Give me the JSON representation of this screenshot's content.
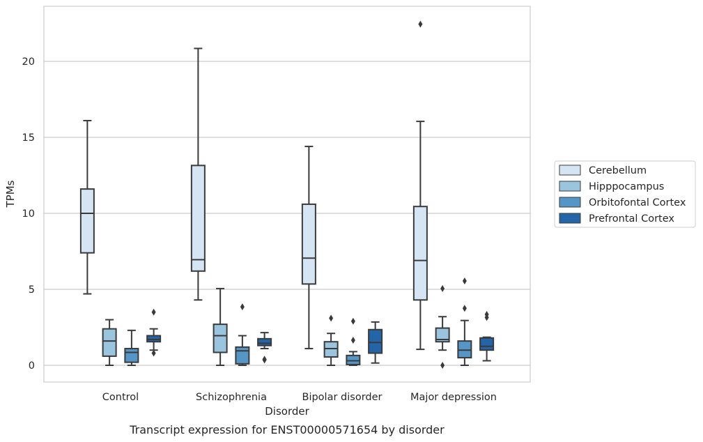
{
  "chart_data": {
    "type": "box",
    "title": "",
    "caption": "Transcript expression for ENST00000571654 by disorder",
    "xlabel": "Disorder",
    "ylabel": "TPMs",
    "ylim": [
      -1.1,
      23.3
    ],
    "yticks": [
      0,
      5,
      10,
      15,
      20
    ],
    "grid": "horizontal",
    "legend_placement": "right",
    "categories": [
      "Control",
      "Schizophrenia",
      "Bipolar disorder",
      "Major depression"
    ],
    "series": [
      {
        "name": "Cerebellum",
        "color": "#d6e5f3",
        "boxes": [
          {
            "whisker_low": 4.7,
            "q1": 7.4,
            "median": 10.0,
            "q3": 11.6,
            "whisker_high": 16.1,
            "outliers": []
          },
          {
            "whisker_low": 4.3,
            "q1": 6.2,
            "median": 6.95,
            "q3": 13.15,
            "whisker_high": 20.85,
            "outliers": []
          },
          {
            "whisker_low": 1.1,
            "q1": 5.35,
            "median": 7.05,
            "q3": 10.6,
            "whisker_high": 14.4,
            "outliers": []
          },
          {
            "whisker_low": 1.05,
            "q1": 4.3,
            "median": 6.9,
            "q3": 10.45,
            "whisker_high": 16.05,
            "outliers": [
              22.45
            ]
          }
        ]
      },
      {
        "name": "Hipppocampus",
        "color": "#9bc5de",
        "boxes": [
          {
            "whisker_low": 0.0,
            "q1": 0.6,
            "median": 1.6,
            "q3": 2.4,
            "whisker_high": 3.0,
            "outliers": []
          },
          {
            "whisker_low": 0.0,
            "q1": 0.85,
            "median": 1.95,
            "q3": 2.7,
            "whisker_high": 5.05,
            "outliers": []
          },
          {
            "whisker_low": 0.0,
            "q1": 0.55,
            "median": 1.1,
            "q3": 1.55,
            "whisker_high": 2.1,
            "outliers": [
              3.1
            ]
          },
          {
            "whisker_low": 1.0,
            "q1": 1.55,
            "median": 1.7,
            "q3": 2.45,
            "whisker_high": 3.2,
            "outliers": [
              5.05,
              0.0
            ]
          }
        ]
      },
      {
        "name": "Orbitofontal Cortex",
        "color": "#5696c7",
        "boxes": [
          {
            "whisker_low": 0.0,
            "q1": 0.2,
            "median": 0.85,
            "q3": 1.1,
            "whisker_high": 2.3,
            "outliers": []
          },
          {
            "whisker_low": 0.0,
            "q1": 0.1,
            "median": 0.95,
            "q3": 1.2,
            "whisker_high": 1.95,
            "outliers": [
              3.85
            ]
          },
          {
            "whisker_low": 0.0,
            "q1": 0.05,
            "median": 0.3,
            "q3": 0.65,
            "whisker_high": 0.9,
            "outliers": [
              2.9,
              1.65
            ]
          },
          {
            "whisker_low": 0.0,
            "q1": 0.5,
            "median": 1.0,
            "q3": 1.6,
            "whisker_high": 2.95,
            "outliers": [
              5.55,
              3.75
            ]
          }
        ]
      },
      {
        "name": "Prefrontal Cortex",
        "color": "#2465a8",
        "boxes": [
          {
            "whisker_low": 1.0,
            "q1": 1.55,
            "median": 1.7,
            "q3": 1.95,
            "whisker_high": 2.4,
            "outliers": [
              3.5,
              0.8
            ]
          },
          {
            "whisker_low": 1.1,
            "q1": 1.3,
            "median": 1.45,
            "q3": 1.75,
            "whisker_high": 2.15,
            "outliers": [
              0.4,
              0.35
            ]
          },
          {
            "whisker_low": 0.15,
            "q1": 0.8,
            "median": 1.5,
            "q3": 2.35,
            "whisker_high": 2.85,
            "outliers": []
          },
          {
            "whisker_low": 0.3,
            "q1": 1.0,
            "median": 1.25,
            "q3": 1.8,
            "whisker_high": 1.85,
            "outliers": [
              3.35,
              3.15
            ]
          }
        ]
      }
    ]
  }
}
